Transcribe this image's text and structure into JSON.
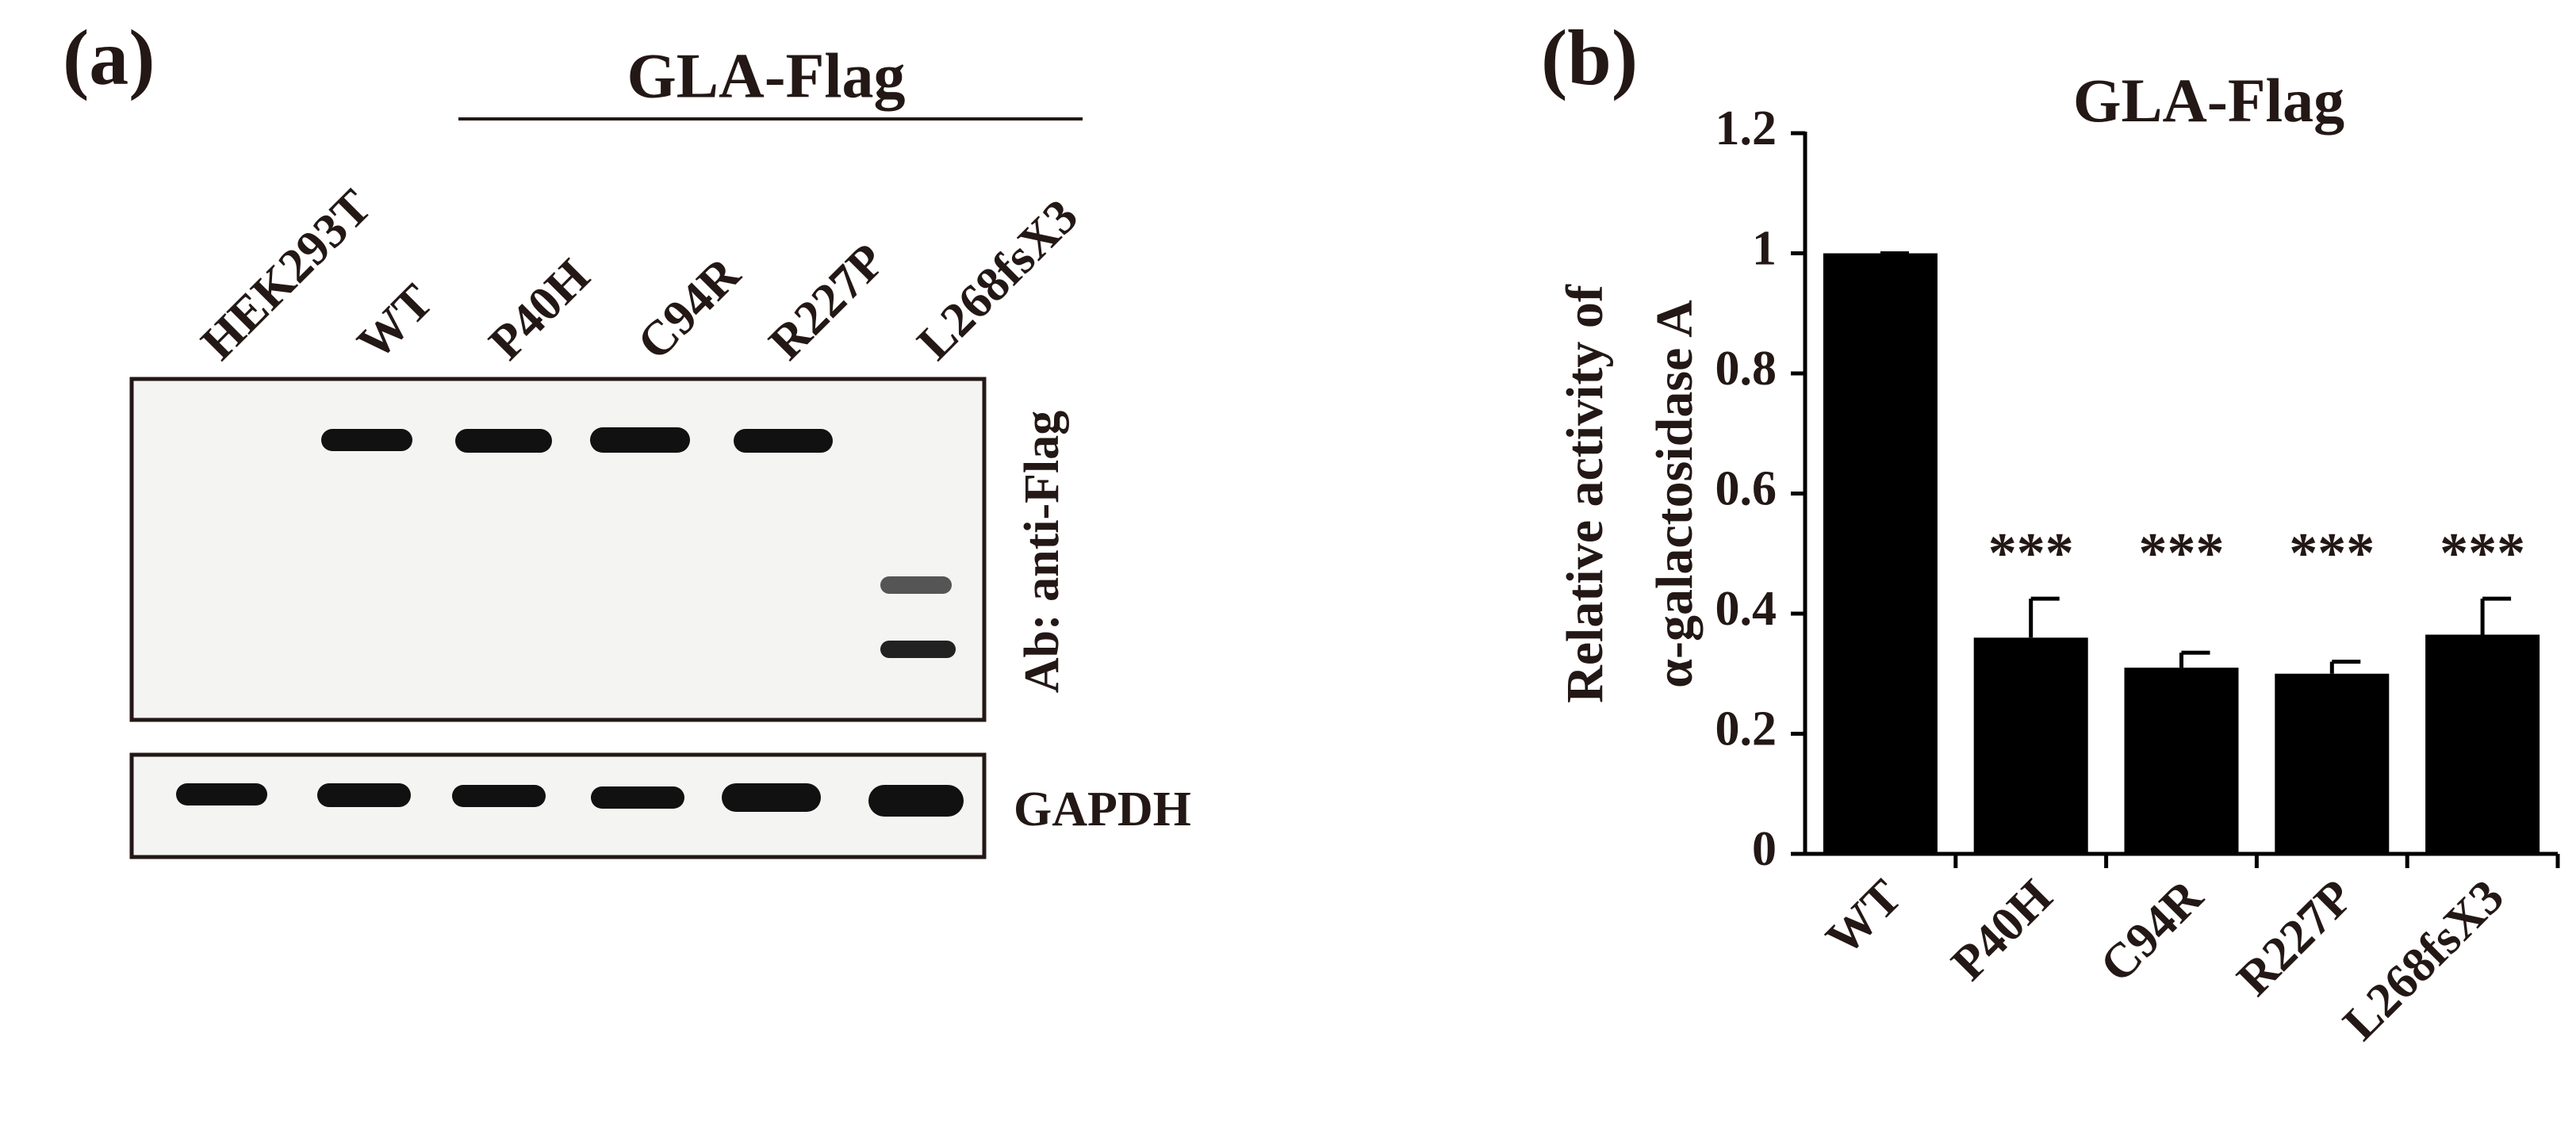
{
  "western_blot": {
    "panel_label": "(a)",
    "group_label": "GLA-Flag",
    "lanes": [
      "HEK293T",
      "WT",
      "P40H",
      "C94R",
      "R227P",
      "L268fsX3"
    ],
    "antibody_label": "Ab: anti-Flag",
    "loading_control_label": "GAPDH"
  },
  "chart_data": {
    "type": "bar",
    "panel_label": "(b)",
    "title": "GLA-Flag",
    "y_label": [
      "Relative activity of",
      "α-galactosidase A"
    ],
    "categories": [
      "WT",
      "P40H",
      "C94R",
      "R227P",
      "L268fsX3"
    ],
    "values": [
      1,
      0.36,
      0.31,
      0.3,
      0.365
    ],
    "errors": [
      0,
      0.065,
      0.025,
      0.02,
      0.06
    ],
    "significance": [
      null,
      "***",
      "***",
      "***",
      "***"
    ],
    "color": "#000000",
    "ylim": [
      0,
      1.2
    ],
    "yticks": [
      0,
      0.2,
      0.4,
      0.6,
      0.8,
      1,
      1.2
    ],
    "grid": false
  }
}
